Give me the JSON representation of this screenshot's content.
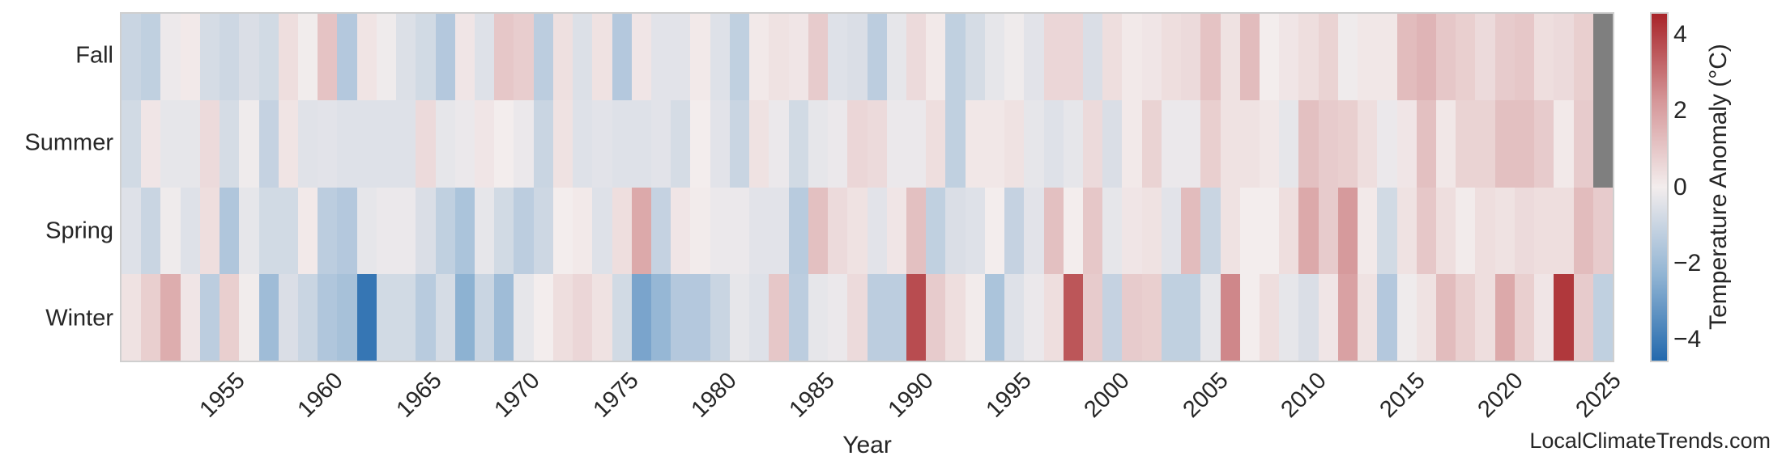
{
  "figure": {
    "background": "#ffffff",
    "text_color": "#262626",
    "frame_color": "#cfcfcf",
    "watermark": "LocalClimateTrends.com"
  },
  "chart_data": {
    "type": "heatmap",
    "title": "",
    "xlabel": "Year",
    "ylabel": "",
    "rows": [
      "Fall",
      "Summer",
      "Spring",
      "Winter"
    ],
    "x_start": 1950,
    "x_end": 2025,
    "x_tick_labels": [
      "1955",
      "1960",
      "1965",
      "1970",
      "1975",
      "1980",
      "1985",
      "1990",
      "1995",
      "2000",
      "2005",
      "2010",
      "2015",
      "2020",
      "2025"
    ],
    "grid": false,
    "colorbar": {
      "label": "Temperature Anomaly (°C)",
      "tick_labels": [
        "4",
        "2",
        "0",
        "−2",
        "−4"
      ],
      "tick_values": [
        4,
        2,
        0,
        -2,
        -4
      ],
      "vmin": -4.6,
      "vmax": 4.6,
      "colormap_stops": [
        {
          "t": 0.0,
          "color": "#2369ad"
        },
        {
          "t": 0.25,
          "color": "#92b5d4"
        },
        {
          "t": 0.5,
          "color": "#f3eded"
        },
        {
          "t": 0.75,
          "color": "#d59698"
        },
        {
          "t": 1.0,
          "color": "#a82429"
        }
      ],
      "missing_color": "#7f7f7f"
    },
    "series": {
      "Fall": [
        -1.0,
        -1.2,
        -0.15,
        0.1,
        -0.7,
        -0.9,
        -0.6,
        -0.8,
        0.4,
        -0.05,
        1.1,
        -1.5,
        0.25,
        -0.1,
        -0.55,
        -0.8,
        -1.5,
        0.2,
        -0.5,
        1.0,
        0.85,
        -1.3,
        0.35,
        -0.55,
        0.3,
        -1.5,
        0.2,
        -0.4,
        -0.4,
        0.1,
        -0.5,
        -1.2,
        0.1,
        0.3,
        0.2,
        0.9,
        -0.5,
        -0.6,
        -1.3,
        -0.3,
        0.5,
        0.1,
        -1.2,
        -0.7,
        -0.3,
        -0.1,
        -0.4,
        0.6,
        0.6,
        -0.6,
        0.4,
        0.1,
        0.2,
        0.4,
        0.5,
        1.1,
        0.3,
        1.3,
        0.0,
        0.2,
        0.4,
        0.7,
        -0.1,
        0.15,
        0.15,
        1.3,
        1.5,
        1.0,
        0.8,
        0.5,
        0.9,
        1.0,
        0.4,
        0.5,
        0.8,
        null
      ],
      "Summer": [
        -0.8,
        0.2,
        -0.3,
        -0.3,
        0.5,
        -0.7,
        -0.1,
        -1.1,
        0.25,
        -0.45,
        -0.4,
        -0.5,
        -0.5,
        -0.5,
        -0.5,
        0.5,
        -0.3,
        -0.2,
        0.2,
        0.0,
        -0.2,
        -1.0,
        0.3,
        -0.5,
        -0.4,
        -0.5,
        -0.5,
        -0.4,
        -0.7,
        0.0,
        -0.4,
        -1.0,
        0.3,
        -0.2,
        -0.8,
        -0.3,
        -0.2,
        0.6,
        0.5,
        -0.2,
        -0.2,
        0.4,
        -1.2,
        0.15,
        0.15,
        0.3,
        -0.3,
        -0.5,
        -0.3,
        0.5,
        -0.6,
        0.1,
        0.7,
        -0.2,
        -0.2,
        0.8,
        0.3,
        0.3,
        0.15,
        -0.3,
        1.2,
        0.9,
        0.8,
        0.4,
        -0.2,
        0.2,
        1.2,
        0.15,
        0.7,
        0.7,
        1.2,
        1.2,
        0.9,
        0.1,
        0.9,
        null
      ],
      "Spring": [
        -0.5,
        -1.0,
        -0.1,
        -0.5,
        0.4,
        -1.6,
        -0.3,
        -0.8,
        -0.8,
        0.1,
        -1.3,
        -1.5,
        -0.3,
        -0.2,
        -0.2,
        -0.6,
        -1.2,
        -1.7,
        -0.3,
        -0.8,
        -1.3,
        -0.9,
        0.0,
        0.1,
        -0.5,
        0.4,
        1.8,
        -1.1,
        0.2,
        0.05,
        -0.2,
        -0.2,
        -0.4,
        -0.4,
        -1.4,
        1.2,
        0.5,
        0.3,
        -0.4,
        0.2,
        1.2,
        -1.2,
        -0.6,
        -0.5,
        0.0,
        -1.1,
        -0.4,
        1.2,
        0.0,
        1.0,
        -0.3,
        0.2,
        0.3,
        -0.4,
        1.3,
        -1.0,
        0.3,
        0.0,
        0.0,
        0.4,
        1.8,
        0.9,
        2.2,
        0.1,
        -0.8,
        0.3,
        1.0,
        0.4,
        0.05,
        0.4,
        0.3,
        0.5,
        0.4,
        0.4,
        1.3,
        0.9
      ],
      "Winter": [
        0.3,
        0.8,
        1.7,
        0.2,
        -1.3,
        0.8,
        -0.05,
        -2.0,
        -0.6,
        -1.0,
        -1.6,
        -1.8,
        -4.2,
        -0.8,
        -0.8,
        -1.4,
        -0.7,
        -2.4,
        -1.0,
        -2.0,
        -0.3,
        0.0,
        0.4,
        0.6,
        0.3,
        -0.8,
        -2.8,
        -2.2,
        -1.5,
        -1.5,
        -1.0,
        -0.3,
        -0.5,
        1.0,
        -1.3,
        -0.3,
        -0.2,
        0.5,
        -1.3,
        -1.3,
        3.8,
        0.9,
        0.4,
        0.05,
        -1.7,
        -0.5,
        -0.2,
        0.4,
        3.6,
        0.9,
        -1.1,
        0.9,
        0.8,
        -1.2,
        -1.2,
        -0.3,
        2.6,
        0.0,
        0.4,
        -0.3,
        -0.6,
        0.2,
        2.0,
        0.3,
        -1.5,
        -0.1,
        0.3,
        1.3,
        0.8,
        0.4,
        1.8,
        0.8,
        0.2,
        4.2,
        0.9,
        -1.2
      ]
    }
  }
}
